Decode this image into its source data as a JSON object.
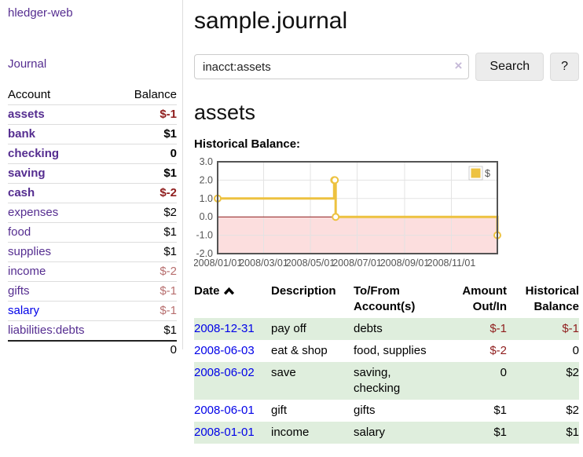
{
  "sidebar": {
    "brand": "hledger-web",
    "journal_link": "Journal",
    "accounts": {
      "headers": {
        "account": "Account",
        "balance": "Balance"
      },
      "rows": [
        {
          "account": "assets",
          "balance": "$-1"
        },
        {
          "account": "bank",
          "balance": "$1"
        },
        {
          "account": "checking",
          "balance": "0"
        },
        {
          "account": "saving",
          "balance": "$1"
        },
        {
          "account": "cash",
          "balance": "$-2"
        },
        {
          "account": "expenses",
          "balance": "$2"
        },
        {
          "account": "food",
          "balance": "$1"
        },
        {
          "account": "supplies",
          "balance": "$1"
        },
        {
          "account": "income",
          "balance": "$-2"
        },
        {
          "account": "gifts",
          "balance": "$-1"
        },
        {
          "account": "salary",
          "balance": "$-1"
        },
        {
          "account": "liabilities:debts",
          "balance": "$1"
        }
      ],
      "total": "0"
    }
  },
  "main": {
    "title": "sample.journal",
    "search": {
      "value": "inacct:assets",
      "clear_icon": "×",
      "search_button": "Search",
      "help_button": "?"
    },
    "account_heading": "assets",
    "chart_label": "Historical Balance:"
  },
  "register": {
    "headers": {
      "date": "Date",
      "description": "Description",
      "accounts": "To/From Account(s)",
      "amount": "Amount Out/In",
      "balance": "Historical Balance"
    },
    "rows": [
      {
        "date": "2008-12-31",
        "description": "pay off",
        "accounts": "debts",
        "amount": "$-1",
        "balance": "$-1"
      },
      {
        "date": "2008-06-03",
        "description": "eat & shop",
        "accounts": "food, supplies",
        "amount": "$-2",
        "balance": "0"
      },
      {
        "date": "2008-06-02",
        "description": "save",
        "accounts": "saving,\nchecking",
        "amount": "0",
        "balance": "$2"
      },
      {
        "date": "2008-06-01",
        "description": "gift",
        "accounts": "gifts",
        "amount": "$1",
        "balance": "$2"
      },
      {
        "date": "2008-01-01",
        "description": "income",
        "accounts": "salary",
        "amount": "$1",
        "balance": "$1"
      }
    ]
  },
  "chart_data": {
    "type": "line",
    "step": true,
    "title": "Historical Balance:",
    "series": [
      {
        "name": "$",
        "color": "#edc240",
        "points": [
          [
            "2008-01-01",
            1
          ],
          [
            "2008-06-01",
            2
          ],
          [
            "2008-06-02",
            2
          ],
          [
            "2008-06-03",
            0
          ],
          [
            "2008-12-31",
            -1
          ]
        ]
      }
    ],
    "x_range": [
      "2008-01-01",
      "2008-12-31"
    ],
    "x_ticks": [
      "2008/01/01",
      "2008/03/01",
      "2008/05/01",
      "2008/07/01",
      "2008/09/01",
      "2008/11/01"
    ],
    "y_ticks": [
      "3.0",
      "2.0",
      "1.0",
      "0.0",
      "-1.0",
      "-2.0"
    ],
    "ylim": [
      -2,
      3
    ],
    "grid": true,
    "legend": "$",
    "legend_position": "top-right",
    "negative_fill": "#fcdede",
    "zero_line_color": "#8b1a1a"
  },
  "colors": {
    "purple": "#552d90",
    "blue": "#0000e8",
    "neg": "#8f1d1d",
    "negfaint": "#b76e6e",
    "green": "#dfeedd",
    "gold": "#edc240",
    "pink": "#fcdede",
    "zeroline": "#8b1a1a",
    "tickgray": "#545454"
  }
}
